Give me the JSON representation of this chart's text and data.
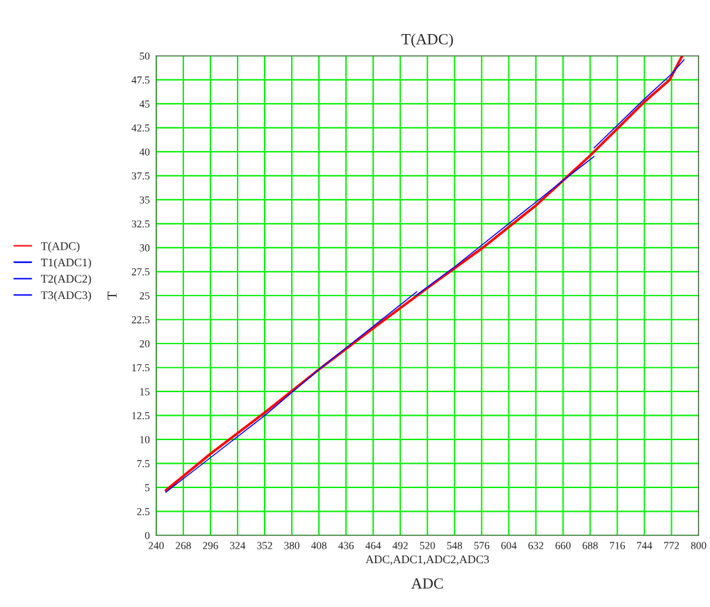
{
  "chart_data": {
    "type": "line",
    "title": "T(ADC)",
    "xlabel": "ADC,ADC1,ADC2,ADC3",
    "ylabel": "T",
    "annotations": [
      "ADC"
    ],
    "xlim": [
      240,
      800
    ],
    "xticks": [
      240,
      268,
      296,
      324,
      352,
      380,
      408,
      436,
      464,
      492,
      520,
      548,
      576,
      604,
      632,
      660,
      688,
      716,
      744,
      772,
      800
    ],
    "ylim": [
      0,
      50
    ],
    "yticks": [
      0,
      2.5,
      5,
      7.5,
      10,
      12.5,
      15,
      17.5,
      20,
      22.5,
      25,
      27.5,
      30,
      32.5,
      35,
      37.5,
      40,
      42.5,
      45,
      47.5,
      50
    ],
    "grid": true,
    "legend": "left",
    "line_style": "solid",
    "marker": "none",
    "series": [
      {
        "name": "T(ADC)",
        "color": "#ff0000",
        "x": [
          250,
          296,
          352,
          408,
          464,
          520,
          576,
          632,
          688,
          744,
          770,
          783
        ],
        "values": [
          4.7,
          8.5,
          12.8,
          17.3,
          21.6,
          25.8,
          29.9,
          34.4,
          39.6,
          45.2,
          47.5,
          50
        ]
      },
      {
        "name": "T1(ADC1)",
        "color": "#0000ff",
        "x": [
          250,
          296,
          352,
          408,
          464,
          509
        ],
        "values": [
          4.5,
          8.1,
          12.5,
          17.3,
          21.8,
          25.4
        ]
      },
      {
        "name": "T2(ADC2)",
        "color": "#0000ff",
        "x": [
          508,
          548,
          604,
          660,
          692
        ],
        "values": [
          25.0,
          28.0,
          32.5,
          37.0,
          39.5
        ]
      },
      {
        "name": "T3(ADC3)",
        "color": "#0000ff",
        "x": [
          692,
          744,
          772,
          785
        ],
        "values": [
          40.4,
          45.5,
          48.1,
          49.6
        ]
      }
    ]
  }
}
